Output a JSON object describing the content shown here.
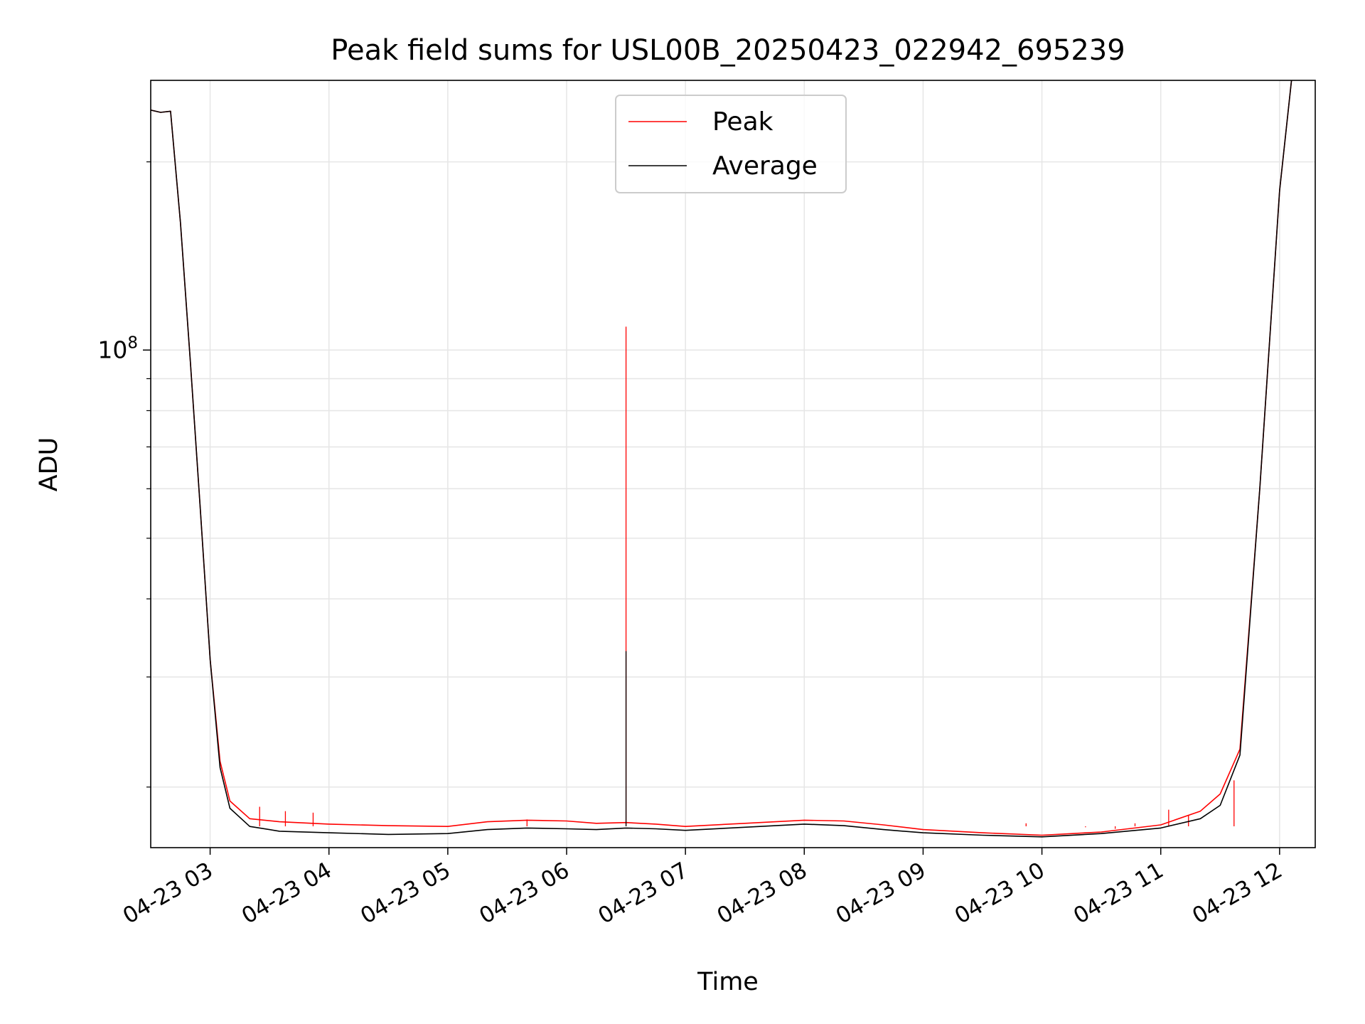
{
  "chart_data": {
    "type": "line",
    "title": "Peak field sums for USL00B_20250423_022942_695239",
    "xlabel": "Time",
    "ylabel": "ADU",
    "x_tick_labels": [
      "04-23 03",
      "04-23 04",
      "04-23 05",
      "04-23 06",
      "04-23 07",
      "04-23 08",
      "04-23 09",
      "04-23 10",
      "04-23 11",
      "04-23 12"
    ],
    "x_ticks": [
      "2025-04-23 03:00",
      "2025-04-23 04:00",
      "2025-04-23 05:00",
      "2025-04-23 06:00",
      "2025-04-23 07:00",
      "2025-04-23 08:00",
      "2025-04-23 09:00",
      "2025-04-23 10:00",
      "2025-04-23 11:00",
      "2025-04-23 12:00"
    ],
    "xlim": [
      "2025-04-23 02:30",
      "2025-04-23 12:18"
    ],
    "y_tick_labels": [
      {
        "base": "10",
        "exp": "8",
        "value": 100000000
      }
    ],
    "y_minor_ticks": [
      20000000,
      30000000,
      40000000,
      50000000,
      60000000,
      70000000,
      80000000,
      90000000,
      200000000
    ],
    "yscale": "log",
    "ylim": [
      16000000,
      270000000
    ],
    "grid": true,
    "legend_position": "upper center",
    "colors": {
      "peak": "#ff0000",
      "average": "#000000"
    },
    "series": [
      {
        "name": "Peak",
        "color": "#ff0000",
        "points": [
          [
            "2025-04-23 02:30",
            242000000
          ],
          [
            "2025-04-23 02:35",
            240000000
          ],
          [
            "2025-04-23 02:40",
            241000000
          ],
          [
            "2025-04-23 02:45",
            160000000
          ],
          [
            "2025-04-23 02:50",
            96000000
          ],
          [
            "2025-04-23 02:55",
            56000000
          ],
          [
            "2025-04-23 03:00",
            32000000
          ],
          [
            "2025-04-23 03:05",
            22000000
          ],
          [
            "2025-04-23 03:10",
            19000000
          ],
          [
            "2025-04-23 03:20",
            17800000
          ],
          [
            "2025-04-23 03:35",
            17600000
          ],
          [
            "2025-04-23 04:00",
            17450000
          ],
          [
            "2025-04-23 04:30",
            17350000
          ],
          [
            "2025-04-23 05:00",
            17300000
          ],
          [
            "2025-04-23 05:20",
            17600000
          ],
          [
            "2025-04-23 05:40",
            17700000
          ],
          [
            "2025-04-23 06:00",
            17650000
          ],
          [
            "2025-04-23 06:15",
            17500000
          ],
          [
            "2025-04-23 06:30",
            17550000
          ],
          [
            "2025-04-23 06:45",
            17450000
          ],
          [
            "2025-04-23 07:00",
            17300000
          ],
          [
            "2025-04-23 07:30",
            17500000
          ],
          [
            "2025-04-23 08:00",
            17700000
          ],
          [
            "2025-04-23 08:20",
            17650000
          ],
          [
            "2025-04-23 08:40",
            17400000
          ],
          [
            "2025-04-23 09:00",
            17100000
          ],
          [
            "2025-04-23 09:30",
            16900000
          ],
          [
            "2025-04-23 10:00",
            16750000
          ],
          [
            "2025-04-23 10:30",
            16950000
          ],
          [
            "2025-04-23 11:00",
            17400000
          ],
          [
            "2025-04-23 11:20",
            18300000
          ],
          [
            "2025-04-23 11:30",
            19500000
          ],
          [
            "2025-04-23 11:40",
            23000000
          ],
          [
            "2025-04-23 11:50",
            60000000
          ],
          [
            "2025-04-23 12:00",
            180000000
          ],
          [
            "2025-04-23 12:06",
            270000000
          ]
        ],
        "spikes": [
          [
            "2025-04-23 03:25",
            18600000
          ],
          [
            "2025-04-23 03:38",
            18300000
          ],
          [
            "2025-04-23 03:52",
            18200000
          ],
          [
            "2025-04-23 05:40",
            17750000
          ],
          [
            "2025-04-23 06:30",
            109000000
          ],
          [
            "2025-04-23 09:52",
            17500000
          ],
          [
            "2025-04-23 10:22",
            17250000
          ],
          [
            "2025-04-23 10:37",
            17150000
          ],
          [
            "2025-04-23 10:47",
            17500000
          ],
          [
            "2025-04-23 11:04",
            18400000
          ],
          [
            "2025-04-23 11:14",
            18000000
          ],
          [
            "2025-04-23 11:37",
            20500000
          ]
        ]
      },
      {
        "name": "Average",
        "color": "#000000",
        "points": [
          [
            "2025-04-23 02:30",
            242000000
          ],
          [
            "2025-04-23 02:35",
            240000000
          ],
          [
            "2025-04-23 02:40",
            241000000
          ],
          [
            "2025-04-23 02:45",
            160000000
          ],
          [
            "2025-04-23 02:50",
            96000000
          ],
          [
            "2025-04-23 02:55",
            56000000
          ],
          [
            "2025-04-23 03:00",
            32000000
          ],
          [
            "2025-04-23 03:05",
            21500000
          ],
          [
            "2025-04-23 03:10",
            18500000
          ],
          [
            "2025-04-23 03:20",
            17300000
          ],
          [
            "2025-04-23 03:35",
            17000000
          ],
          [
            "2025-04-23 04:00",
            16900000
          ],
          [
            "2025-04-23 04:30",
            16800000
          ],
          [
            "2025-04-23 05:00",
            16850000
          ],
          [
            "2025-04-23 05:20",
            17100000
          ],
          [
            "2025-04-23 05:40",
            17200000
          ],
          [
            "2025-04-23 06:00",
            17150000
          ],
          [
            "2025-04-23 06:15",
            17100000
          ],
          [
            "2025-04-23 06:30",
            17200000
          ],
          [
            "2025-04-23 06:45",
            17150000
          ],
          [
            "2025-04-23 07:00",
            17050000
          ],
          [
            "2025-04-23 07:30",
            17250000
          ],
          [
            "2025-04-23 08:00",
            17450000
          ],
          [
            "2025-04-23 08:20",
            17350000
          ],
          [
            "2025-04-23 08:40",
            17100000
          ],
          [
            "2025-04-23 09:00",
            16900000
          ],
          [
            "2025-04-23 09:30",
            16750000
          ],
          [
            "2025-04-23 10:00",
            16650000
          ],
          [
            "2025-04-23 10:30",
            16850000
          ],
          [
            "2025-04-23 11:00",
            17200000
          ],
          [
            "2025-04-23 11:20",
            17800000
          ],
          [
            "2025-04-23 11:30",
            18700000
          ],
          [
            "2025-04-23 11:40",
            22500000
          ],
          [
            "2025-04-23 11:50",
            60000000
          ],
          [
            "2025-04-23 12:00",
            180000000
          ],
          [
            "2025-04-23 12:06",
            270000000
          ]
        ],
        "spikes": [
          [
            "2025-04-23 06:30",
            33000000
          ]
        ]
      }
    ]
  }
}
